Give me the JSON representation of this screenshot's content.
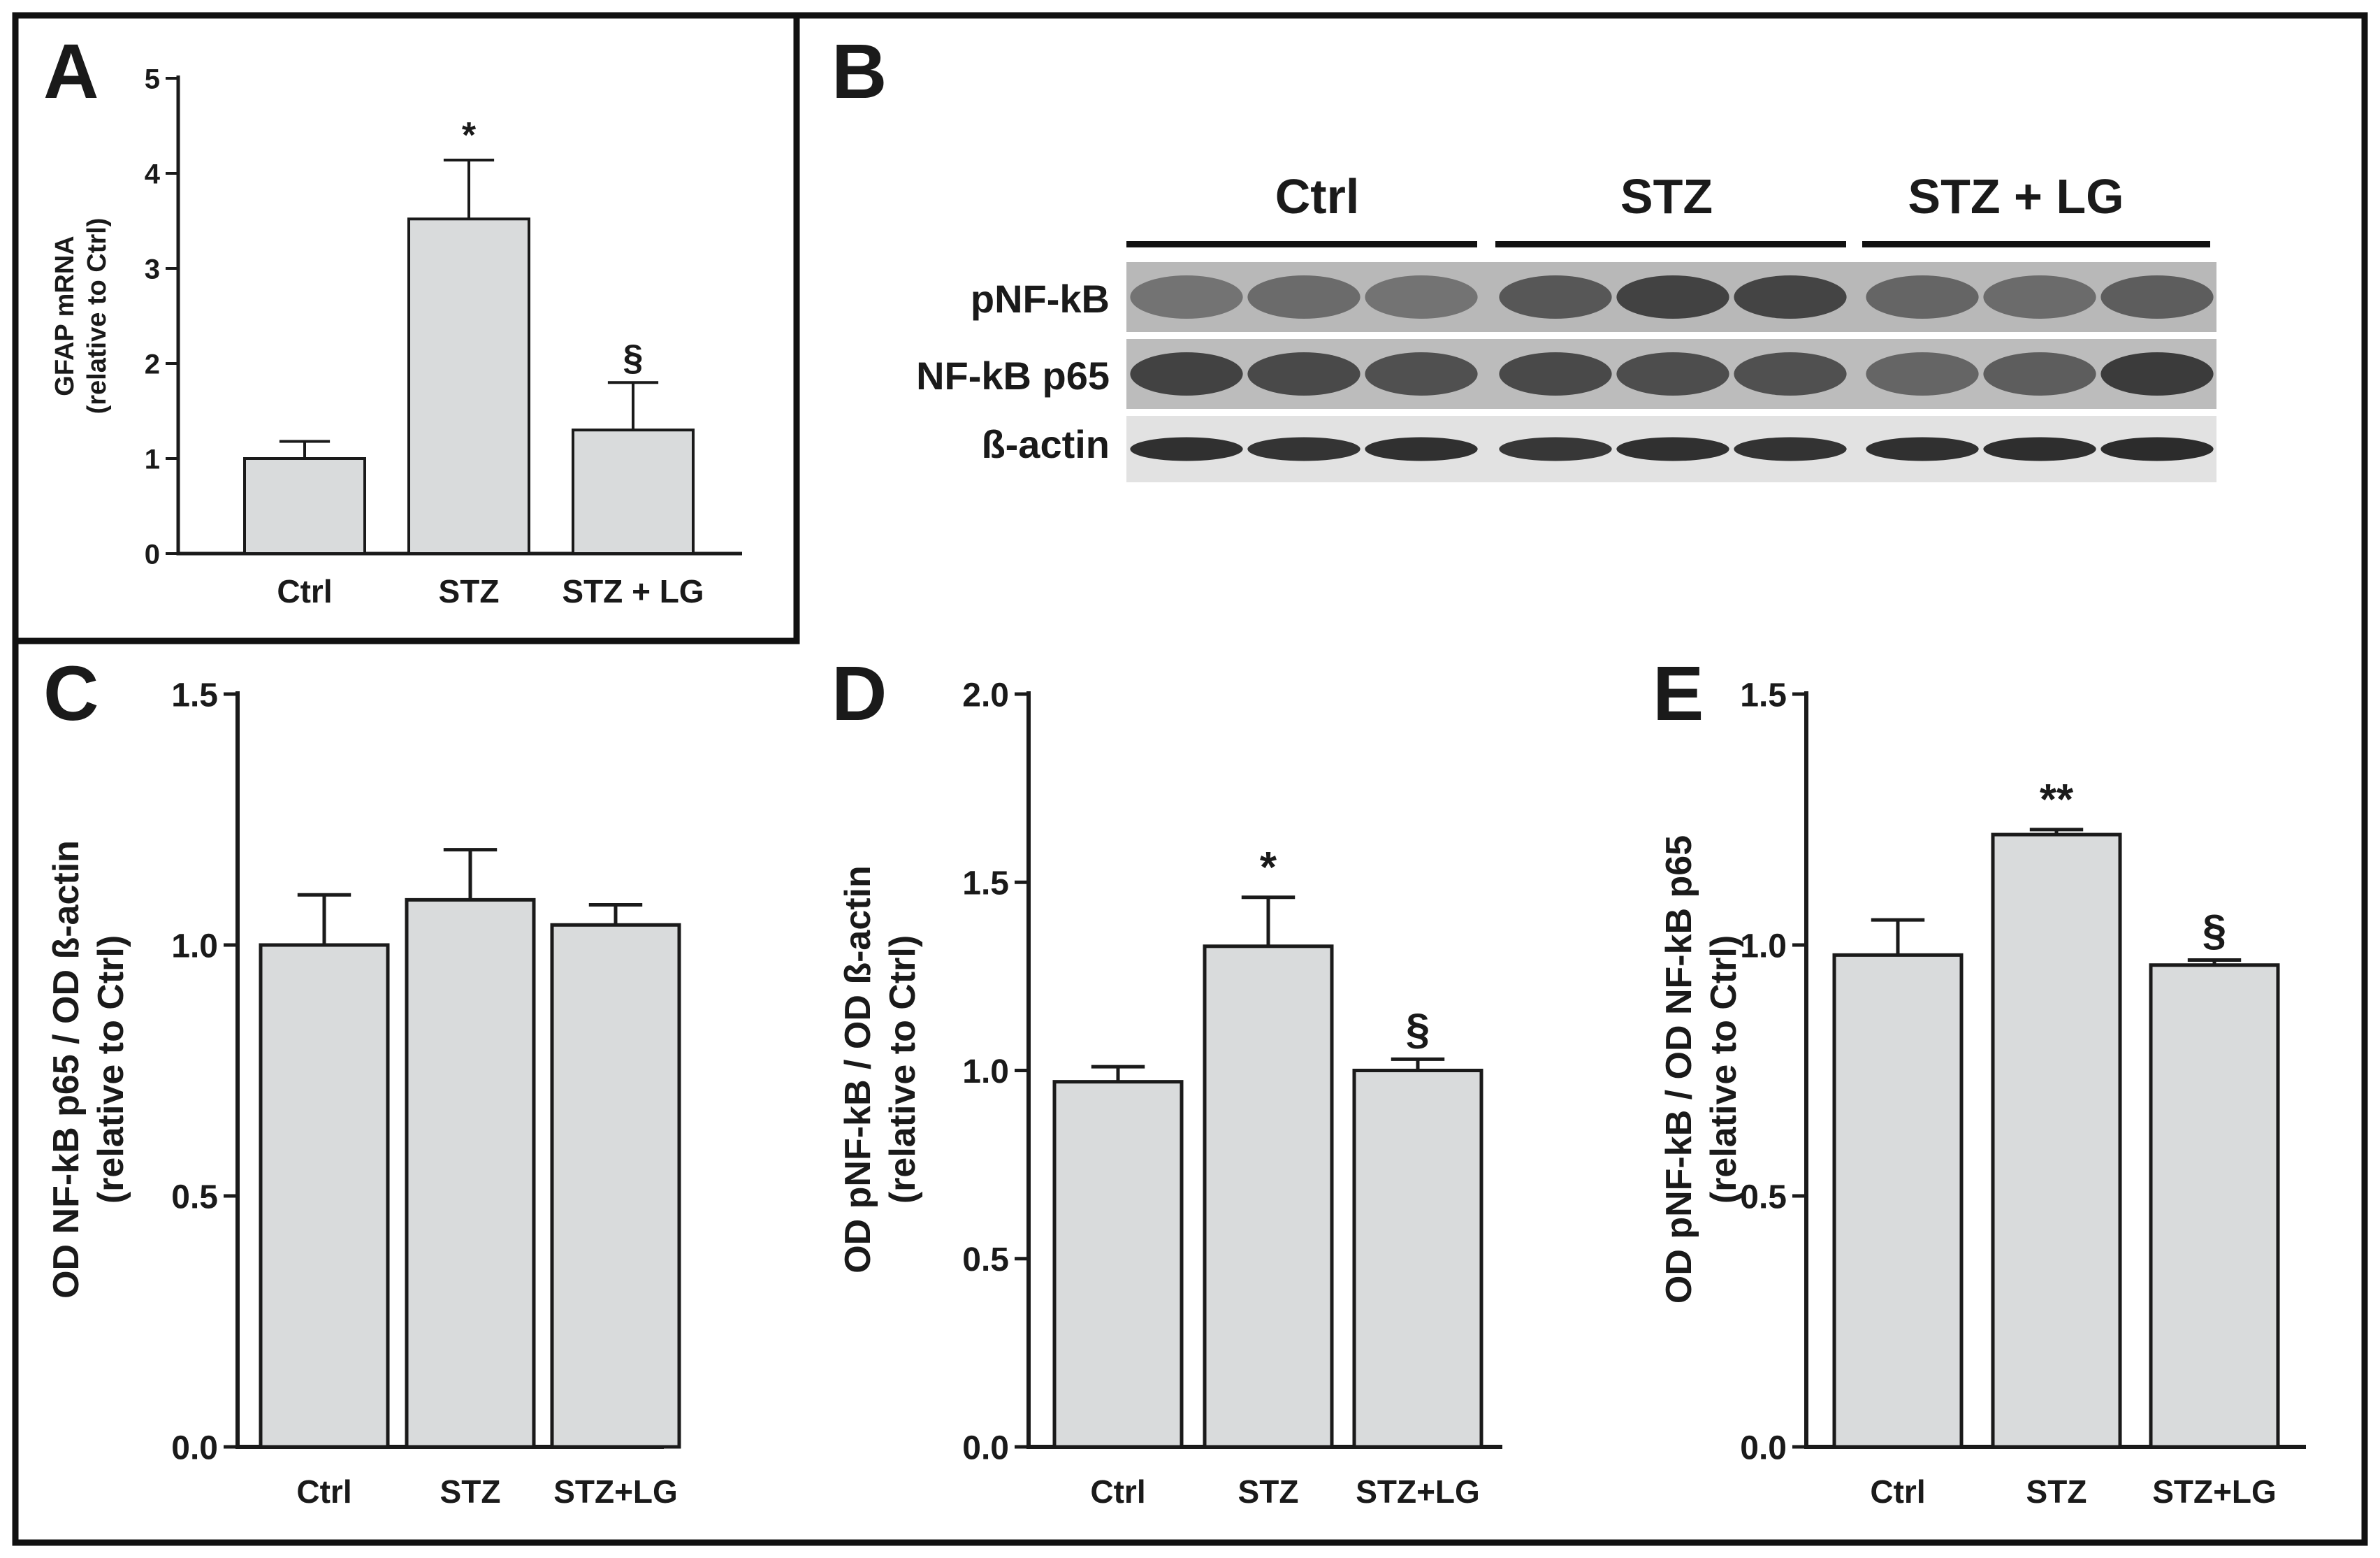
{
  "colors": {
    "bar_fill": "#d9dbdc",
    "ink": "#1a1a1a",
    "border": "#111111"
  },
  "panels": {
    "A": {
      "letter": "A"
    },
    "B": {
      "letter": "B"
    },
    "C": {
      "letter": "C"
    },
    "D": {
      "letter": "D"
    },
    "E": {
      "letter": "E"
    }
  },
  "blot": {
    "groups": [
      "Ctrl",
      "STZ",
      "STZ + LG"
    ],
    "rows": [
      {
        "label": "pNF-kB",
        "intensity": [
          0.45,
          0.5,
          0.45,
          0.65,
          0.8,
          0.78,
          0.55,
          0.5,
          0.6
        ]
      },
      {
        "label": "NF-kB p65",
        "intensity": [
          0.8,
          0.75,
          0.7,
          0.75,
          0.72,
          0.7,
          0.55,
          0.6,
          0.85
        ]
      },
      {
        "label": "ß-actin",
        "intensity": [
          0.95,
          0.92,
          0.95,
          0.9,
          0.95,
          0.93,
          0.95,
          0.97,
          0.98
        ]
      }
    ]
  },
  "chart_data": [
    {
      "panel": "A",
      "type": "bar",
      "title": "",
      "categories": [
        "Ctrl",
        "STZ",
        "STZ + LG"
      ],
      "values": [
        1.0,
        3.52,
        1.3
      ],
      "errors": [
        0.18,
        0.62,
        0.5
      ],
      "annotations": [
        "",
        "*",
        "§"
      ],
      "ylabel_lines": [
        "GFAP mRNA",
        "(relative to Ctrl)"
      ],
      "xlabel": "",
      "ylim": [
        0,
        5
      ],
      "yticks": [
        "0",
        "1",
        "2",
        "3",
        "4",
        "5"
      ]
    },
    {
      "panel": "C",
      "type": "bar",
      "title": "",
      "categories": [
        "Ctrl",
        "STZ",
        "STZ+LG"
      ],
      "values": [
        1.0,
        1.09,
        1.04
      ],
      "errors": [
        0.1,
        0.1,
        0.04
      ],
      "annotations": [
        "",
        "",
        ""
      ],
      "ylabel_lines": [
        "OD NF-kB p65 / OD ß-actin",
        "(relative to Ctrl)"
      ],
      "xlabel": "",
      "ylim": [
        0,
        1.5
      ],
      "yticks": [
        "0.0",
        "0.5",
        "1.0",
        "1.5"
      ]
    },
    {
      "panel": "D",
      "type": "bar",
      "title": "",
      "categories": [
        "Ctrl",
        "STZ",
        "STZ+LG"
      ],
      "values": [
        0.97,
        1.33,
        1.0
      ],
      "errors": [
        0.04,
        0.13,
        0.03
      ],
      "annotations": [
        "",
        "*",
        "§"
      ],
      "ylabel_lines": [
        "OD pNF-kB / OD ß-actin",
        "(relative to Ctrl)"
      ],
      "xlabel": "",
      "ylim": [
        0,
        2.0
      ],
      "yticks": [
        "0.0",
        "0.5",
        "1.0",
        "1.5",
        "2.0"
      ]
    },
    {
      "panel": "E",
      "type": "bar",
      "title": "",
      "categories": [
        "Ctrl",
        "STZ",
        "STZ+LG"
      ],
      "values": [
        0.98,
        1.22,
        0.96
      ],
      "errors": [
        0.07,
        0.01,
        0.01
      ],
      "annotations": [
        "",
        "**",
        "§"
      ],
      "ylabel_lines": [
        "OD pNF-kB / OD NF-kB p65",
        "(relative to Ctrl)"
      ],
      "xlabel": "",
      "ylim": [
        0,
        1.5
      ],
      "yticks": [
        "0.0",
        "0.5",
        "1.0",
        "1.5"
      ]
    }
  ]
}
